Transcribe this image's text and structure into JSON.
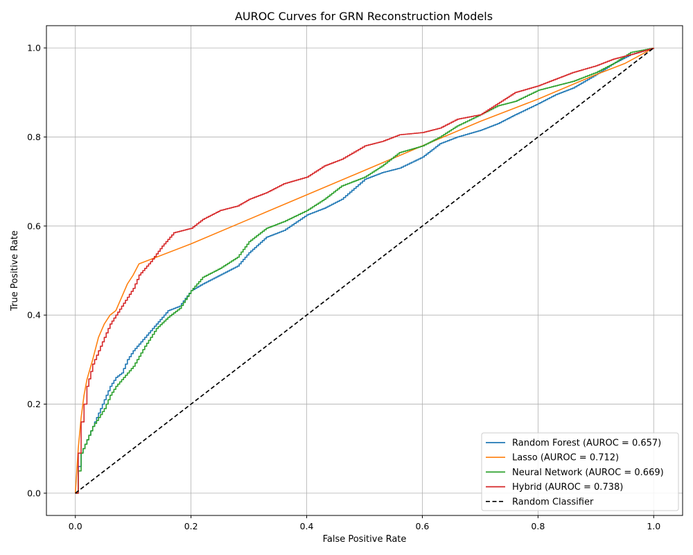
{
  "chart_data": {
    "type": "line",
    "title": "AUROC Curves for GRN Reconstruction Models",
    "xlabel": "False Positive Rate",
    "ylabel": "True Positive Rate",
    "xlim": [
      -0.05,
      1.05
    ],
    "ylim": [
      -0.05,
      1.05
    ],
    "xticks": [
      "0.0",
      "0.2",
      "0.4",
      "0.6",
      "0.8",
      "1.0"
    ],
    "yticks": [
      "0.0",
      "0.2",
      "0.4",
      "0.6",
      "0.8",
      "1.0"
    ],
    "grid": true,
    "legend_position": "lower-right",
    "series": [
      {
        "name": "Random Forest (AUROC = 0.657)",
        "color": "#1f77b4",
        "dash": "solid",
        "x": [
          0.0,
          0.005,
          0.01,
          0.02,
          0.03,
          0.04,
          0.05,
          0.06,
          0.07,
          0.08,
          0.09,
          0.1,
          0.12,
          0.14,
          0.16,
          0.18,
          0.2,
          0.22,
          0.25,
          0.28,
          0.3,
          0.33,
          0.36,
          0.4,
          0.43,
          0.46,
          0.5,
          0.53,
          0.56,
          0.6,
          0.63,
          0.66,
          0.7,
          0.73,
          0.76,
          0.8,
          0.83,
          0.86,
          0.9,
          0.93,
          0.96,
          1.0
        ],
        "y": [
          0.0,
          0.06,
          0.09,
          0.12,
          0.15,
          0.18,
          0.21,
          0.24,
          0.26,
          0.27,
          0.3,
          0.32,
          0.35,
          0.38,
          0.41,
          0.42,
          0.455,
          0.47,
          0.49,
          0.51,
          0.54,
          0.575,
          0.59,
          0.625,
          0.64,
          0.66,
          0.705,
          0.72,
          0.73,
          0.755,
          0.785,
          0.8,
          0.815,
          0.83,
          0.85,
          0.875,
          0.895,
          0.91,
          0.94,
          0.965,
          0.985,
          1.0
        ]
      },
      {
        "name": "Lasso (AUROC = 0.712)",
        "color": "#ff7f0e",
        "dash": "solid",
        "x": [
          0.0,
          0.005,
          0.01,
          0.015,
          0.02,
          0.03,
          0.04,
          0.05,
          0.06,
          0.07,
          0.08,
          0.09,
          0.1,
          0.11,
          0.2,
          0.3,
          0.4,
          0.5,
          0.6,
          0.7,
          0.8,
          0.9,
          0.95,
          1.0
        ],
        "y": [
          0.0,
          0.1,
          0.17,
          0.22,
          0.255,
          0.3,
          0.35,
          0.38,
          0.4,
          0.41,
          0.44,
          0.47,
          0.49,
          0.515,
          0.56,
          0.615,
          0.67,
          0.725,
          0.78,
          0.835,
          0.885,
          0.94,
          0.965,
          1.0
        ]
      },
      {
        "name": "Neural Network (AUROC = 0.669)",
        "color": "#2ca02c",
        "dash": "solid",
        "x": [
          0.0,
          0.005,
          0.01,
          0.02,
          0.03,
          0.04,
          0.05,
          0.06,
          0.07,
          0.08,
          0.09,
          0.1,
          0.12,
          0.14,
          0.16,
          0.18,
          0.2,
          0.22,
          0.25,
          0.28,
          0.3,
          0.33,
          0.36,
          0.4,
          0.43,
          0.46,
          0.5,
          0.53,
          0.56,
          0.6,
          0.63,
          0.66,
          0.7,
          0.73,
          0.76,
          0.8,
          0.83,
          0.86,
          0.9,
          0.93,
          0.96,
          1.0
        ],
        "y": [
          0.0,
          0.05,
          0.09,
          0.12,
          0.15,
          0.17,
          0.19,
          0.22,
          0.24,
          0.255,
          0.27,
          0.285,
          0.33,
          0.37,
          0.395,
          0.415,
          0.455,
          0.485,
          0.505,
          0.53,
          0.565,
          0.595,
          0.61,
          0.635,
          0.66,
          0.69,
          0.71,
          0.735,
          0.765,
          0.78,
          0.8,
          0.825,
          0.85,
          0.87,
          0.88,
          0.905,
          0.915,
          0.925,
          0.945,
          0.965,
          0.99,
          1.0
        ]
      },
      {
        "name": "Hybrid (AUROC = 0.738)",
        "color": "#d62728",
        "dash": "solid",
        "x": [
          0.0,
          0.005,
          0.01,
          0.015,
          0.02,
          0.03,
          0.04,
          0.05,
          0.06,
          0.07,
          0.08,
          0.09,
          0.1,
          0.11,
          0.13,
          0.15,
          0.17,
          0.2,
          0.22,
          0.25,
          0.28,
          0.3,
          0.33,
          0.36,
          0.4,
          0.43,
          0.46,
          0.5,
          0.53,
          0.56,
          0.6,
          0.63,
          0.66,
          0.7,
          0.73,
          0.76,
          0.8,
          0.83,
          0.86,
          0.9,
          0.93,
          0.96,
          1.0
        ],
        "y": [
          0.0,
          0.09,
          0.16,
          0.2,
          0.24,
          0.29,
          0.32,
          0.35,
          0.38,
          0.4,
          0.42,
          0.44,
          0.46,
          0.49,
          0.52,
          0.555,
          0.585,
          0.595,
          0.615,
          0.635,
          0.645,
          0.66,
          0.675,
          0.695,
          0.71,
          0.735,
          0.75,
          0.78,
          0.79,
          0.805,
          0.81,
          0.82,
          0.84,
          0.85,
          0.875,
          0.9,
          0.915,
          0.93,
          0.945,
          0.96,
          0.975,
          0.985,
          1.0
        ]
      },
      {
        "name": "Random Classifier",
        "color": "#000000",
        "dash": "dashed",
        "x": [
          0.0,
          1.0
        ],
        "y": [
          0.0,
          1.0
        ]
      }
    ]
  }
}
